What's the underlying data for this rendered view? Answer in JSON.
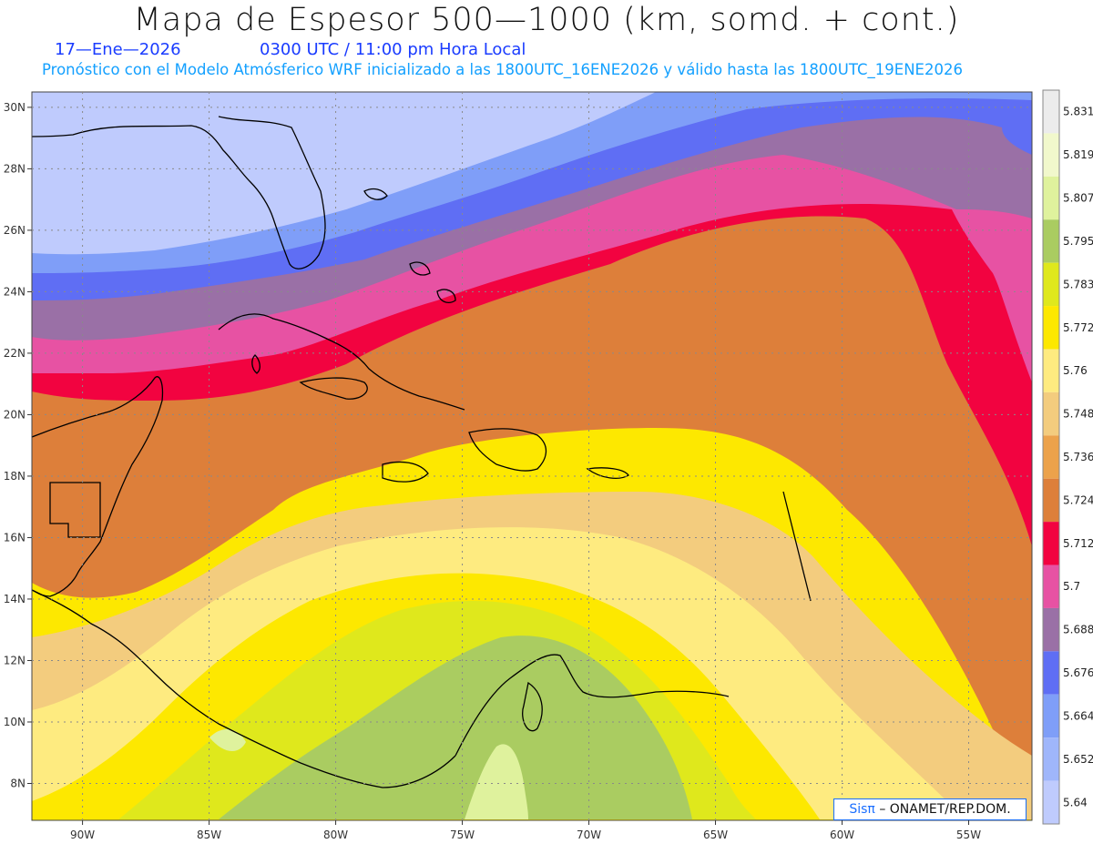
{
  "header": {
    "title": "Mapa de Espesor 500—1000 (km, somd. + cont.)",
    "date": "17—Ene—2026",
    "time": "0300 UTC / 11:00 pm Hora Local",
    "forecast_note": "Pronóstico con el Modelo Atmósferico WRF inicializado a las 1800UTC_16ENE2026 y válido hasta las  1800UTC_19ENE2026"
  },
  "map": {
    "lon_range": [
      -92,
      -52.5
    ],
    "lat_range": [
      6.8,
      30.5
    ],
    "x_ticks": [
      "90W",
      "85W",
      "80W",
      "75W",
      "70W",
      "65W",
      "60W",
      "55W"
    ],
    "y_ticks": [
      "30N",
      "28N",
      "26N",
      "24N",
      "22N",
      "20N",
      "18N",
      "16N",
      "14N",
      "12N",
      "10N",
      "8N"
    ],
    "grid": "dotted"
  },
  "legend": {
    "labels": [
      "5.831",
      "5.819",
      "5.807",
      "5.795",
      "5.783",
      "5.772",
      "5.76",
      "5.748",
      "5.736",
      "5.724",
      "5.712",
      "5.7",
      "5.688",
      "5.676",
      "5.664",
      "5.652",
      "5.64"
    ],
    "colors": [
      "#ececec",
      "#f1f8cc",
      "#dff29d",
      "#aacc61",
      "#dfe81c",
      "#fde800",
      "#feeb80",
      "#f3cc7e",
      "#eca24b",
      "#dd7f3a",
      "#f20340",
      "#e752a3",
      "#9a70a6",
      "#5f6ef4",
      "#7f9ef8",
      "#9fb6fb",
      "#bfcbfd"
    ]
  },
  "credit": {
    "brand": "Sisπ",
    "text": "– ONAMET/REP.DOM."
  }
}
